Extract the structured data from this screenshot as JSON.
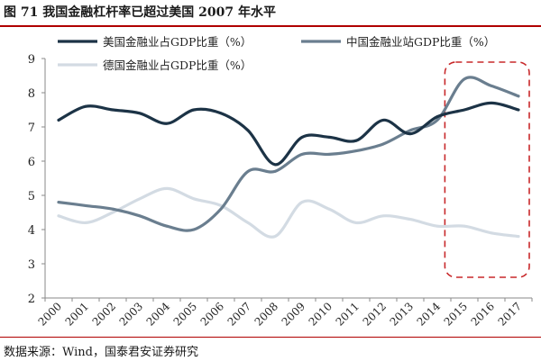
{
  "header": {
    "title": "图 71 我国金融杠杆率已超过美国 2007 年水平"
  },
  "footer": {
    "source": "数据来源：Wind，国泰君安证券研究"
  },
  "colors": {
    "us": "#1c3346",
    "cn": "#6a7e8f",
    "de": "#d3dbe3",
    "highlight": "#c8282a",
    "axis": "#8a8a8a",
    "text": "#222222"
  },
  "chart_data": {
    "type": "line",
    "categories": [
      "2000",
      "2001",
      "2002",
      "2003",
      "2004",
      "2005",
      "2006",
      "2007",
      "2008",
      "2009",
      "2010",
      "2011",
      "2012",
      "2013",
      "2014",
      "2015",
      "2016",
      "2017"
    ],
    "ylim": [
      2,
      9
    ],
    "yticks": [
      2,
      3,
      4,
      5,
      6,
      7,
      8,
      9
    ],
    "series": [
      {
        "name": "美国金融业占GDP比重（%）",
        "values": [
          7.2,
          7.6,
          7.5,
          7.4,
          7.1,
          7.5,
          7.4,
          6.9,
          5.9,
          6.7,
          6.7,
          6.6,
          7.2,
          6.8,
          7.3,
          7.5,
          7.7,
          7.5
        ]
      },
      {
        "name": "中国金融业站GDP比重（%）",
        "values": [
          4.8,
          4.7,
          4.6,
          4.4,
          4.1,
          4.0,
          4.6,
          5.7,
          5.7,
          6.2,
          6.2,
          6.3,
          6.5,
          6.9,
          7.2,
          8.4,
          8.2,
          7.9
        ]
      },
      {
        "name": "德国金融业占GDP比重（%）",
        "values": [
          4.4,
          4.2,
          4.5,
          4.9,
          5.2,
          4.9,
          4.7,
          4.2,
          3.8,
          4.8,
          4.6,
          4.2,
          4.4,
          4.3,
          4.1,
          4.1,
          3.9,
          3.8
        ]
      }
    ],
    "highlight_range": [
      "2015",
      "2017"
    ],
    "legend_position": "top"
  }
}
